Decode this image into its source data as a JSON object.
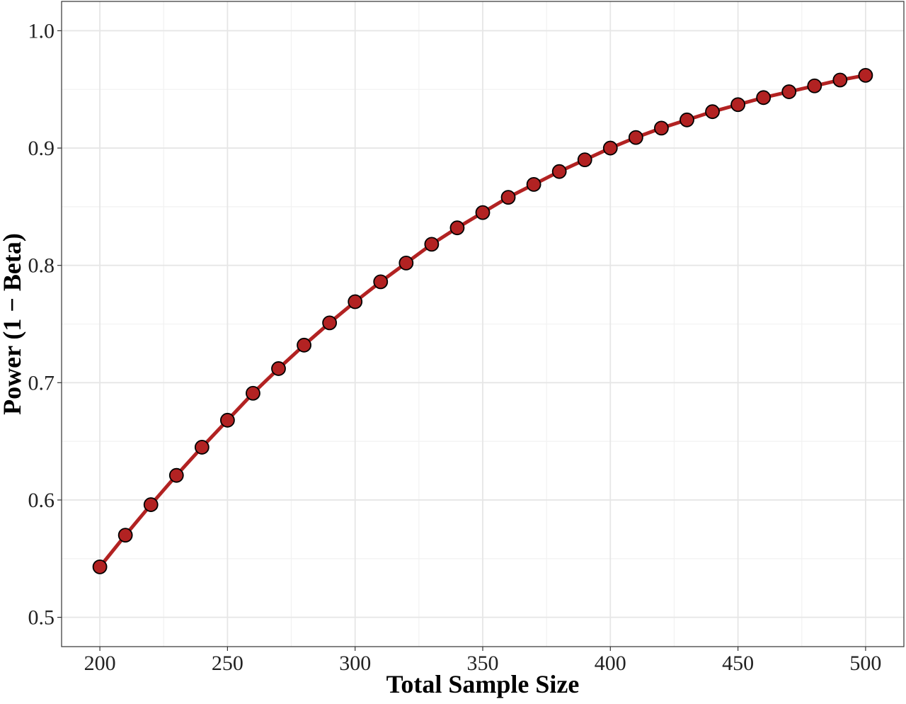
{
  "chart_data": {
    "type": "line",
    "title": "",
    "xlabel": "Total Sample Size",
    "ylabel": "Power (1 − Beta)",
    "xlim": [
      185,
      515
    ],
    "ylim": [
      0.475,
      1.025
    ],
    "x_ticks": [
      200,
      250,
      300,
      350,
      400,
      450,
      500
    ],
    "x_tick_labels": [
      "200",
      "250",
      "300",
      "350",
      "400",
      "450",
      "500"
    ],
    "y_ticks": [
      0.5,
      0.6,
      0.7,
      0.8,
      0.9,
      1.0
    ],
    "y_tick_labels": [
      "0.5",
      "0.6",
      "0.7",
      "0.8",
      "0.9",
      "1.0"
    ],
    "grid": true,
    "legend": "none",
    "series": [
      {
        "color": "#b22222",
        "marker_fill": "#b22222",
        "marker_edge": "#000000",
        "x": [
          200,
          210,
          220,
          230,
          240,
          250,
          260,
          270,
          280,
          290,
          300,
          310,
          320,
          330,
          340,
          350,
          360,
          370,
          380,
          390,
          400,
          410,
          420,
          430,
          440,
          450,
          460,
          470,
          480,
          490,
          500
        ],
        "y": [
          0.543,
          0.57,
          0.596,
          0.621,
          0.645,
          0.668,
          0.691,
          0.712,
          0.732,
          0.751,
          0.769,
          0.786,
          0.802,
          0.818,
          0.832,
          0.845,
          0.858,
          0.869,
          0.88,
          0.89,
          0.9,
          0.909,
          0.917,
          0.924,
          0.931,
          0.937,
          0.943,
          0.948,
          0.953,
          0.958,
          0.962
        ]
      }
    ]
  }
}
